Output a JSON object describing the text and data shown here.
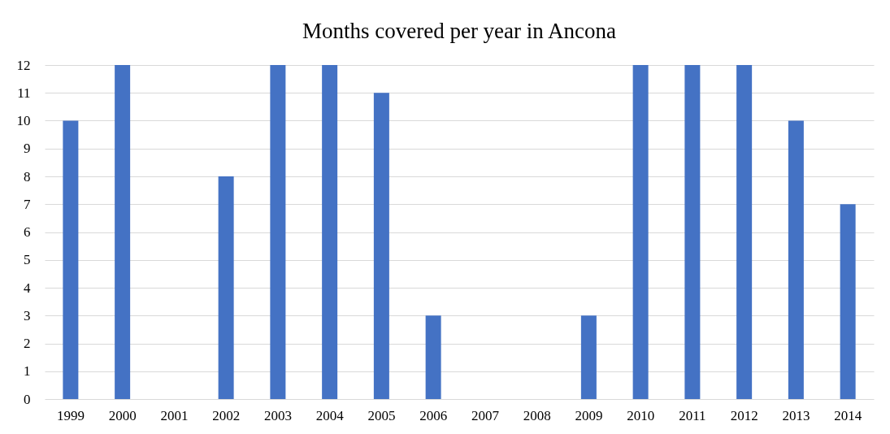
{
  "chart_data": {
    "type": "bar",
    "title": "Months covered per year in Ancona",
    "categories": [
      "1999",
      "2000",
      "2001",
      "2002",
      "2003",
      "2004",
      "2005",
      "2006",
      "2007",
      "2008",
      "2009",
      "2010",
      "2011",
      "2012",
      "2013",
      "2014"
    ],
    "values": [
      10,
      12,
      0,
      8,
      12,
      12,
      11,
      3,
      0,
      0,
      3,
      12,
      12,
      12,
      10,
      7
    ],
    "color": "#4472c4",
    "ylim": [
      0,
      12
    ],
    "yticks": [
      0,
      1,
      2,
      3,
      4,
      5,
      6,
      7,
      8,
      9,
      10,
      11,
      12
    ],
    "grid": "y"
  }
}
